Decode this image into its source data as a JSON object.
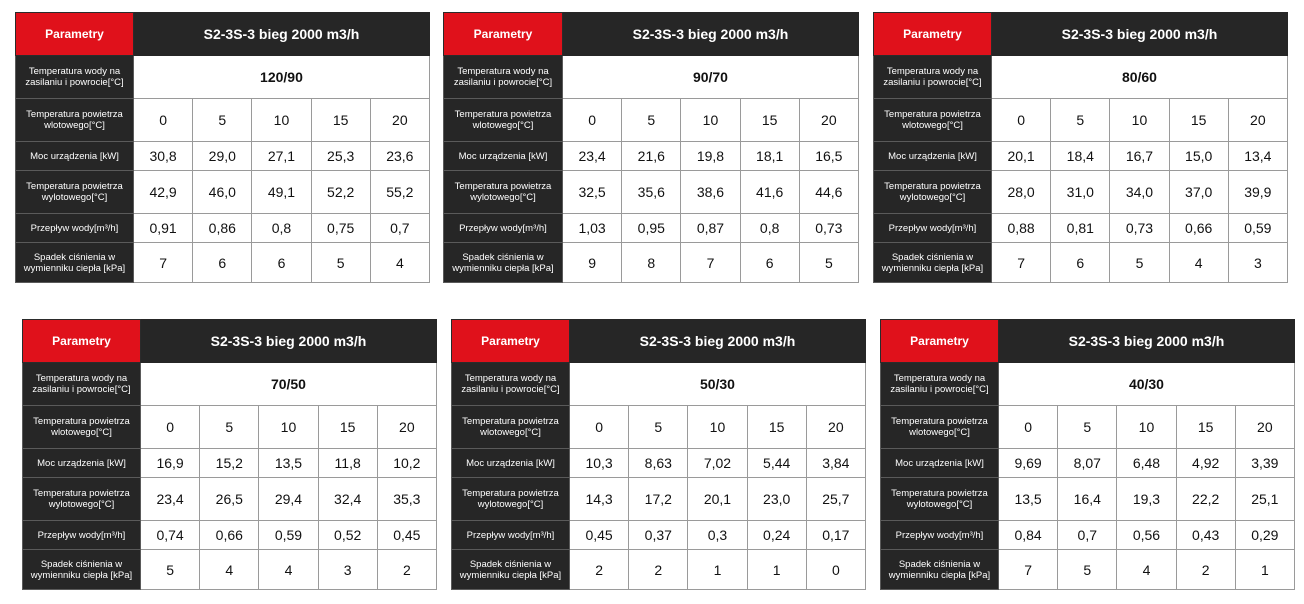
{
  "labels": {
    "parametry": "Parametry",
    "temp_wody": [
      "Temperatura wody na",
      "zasilaniu i powrocie[°C]"
    ],
    "temp_wlot": [
      "Temperatura powietrza",
      "wlotowego[°C]"
    ],
    "moc": "Moc urządzenia [kW]",
    "temp_wylot": [
      "Temperatura powietrza",
      "wylotowego[°C]"
    ],
    "przeplyw": "Przepływ wody[m³/h]",
    "spadek": [
      "Spadek ciśnienia w",
      "wymienniku ciepła [kPa]"
    ]
  },
  "tables": [
    {
      "title": "S2-3S-3 bieg 2000 m3/h",
      "water_temp": "120/90",
      "inlet": [
        "0",
        "5",
        "10",
        "15",
        "20"
      ],
      "power": [
        "30,8",
        "29,0",
        "27,1",
        "25,3",
        "23,6"
      ],
      "outlet": [
        "42,9",
        "46,0",
        "49,1",
        "52,2",
        "55,2"
      ],
      "flow": [
        "0,91",
        "0,86",
        "0,8",
        "0,75",
        "0,7"
      ],
      "pressure": [
        "7",
        "6",
        "6",
        "5",
        "4"
      ]
    },
    {
      "title": "S2-3S-3 bieg 2000 m3/h",
      "water_temp": "90/70",
      "inlet": [
        "0",
        "5",
        "10",
        "15",
        "20"
      ],
      "power": [
        "23,4",
        "21,6",
        "19,8",
        "18,1",
        "16,5"
      ],
      "outlet": [
        "32,5",
        "35,6",
        "38,6",
        "41,6",
        "44,6"
      ],
      "flow": [
        "1,03",
        "0,95",
        "0,87",
        "0,8",
        "0,73"
      ],
      "pressure": [
        "9",
        "8",
        "7",
        "6",
        "5"
      ]
    },
    {
      "title": "S2-3S-3 bieg 2000 m3/h",
      "water_temp": "80/60",
      "inlet": [
        "0",
        "5",
        "10",
        "15",
        "20"
      ],
      "power": [
        "20,1",
        "18,4",
        "16,7",
        "15,0",
        "13,4"
      ],
      "outlet": [
        "28,0",
        "31,0",
        "34,0",
        "37,0",
        "39,9"
      ],
      "flow": [
        "0,88",
        "0,81",
        "0,73",
        "0,66",
        "0,59"
      ],
      "pressure": [
        "7",
        "6",
        "5",
        "4",
        "3"
      ]
    },
    {
      "title": "S2-3S-3 bieg 2000 m3/h",
      "water_temp": "70/50",
      "inlet": [
        "0",
        "5",
        "10",
        "15",
        "20"
      ],
      "power": [
        "16,9",
        "15,2",
        "13,5",
        "11,8",
        "10,2"
      ],
      "outlet": [
        "23,4",
        "26,5",
        "29,4",
        "32,4",
        "35,3"
      ],
      "flow": [
        "0,74",
        "0,66",
        "0,59",
        "0,52",
        "0,45"
      ],
      "pressure": [
        "5",
        "4",
        "4",
        "3",
        "2"
      ]
    },
    {
      "title": "S2-3S-3 bieg 2000 m3/h",
      "water_temp": "50/30",
      "inlet": [
        "0",
        "5",
        "10",
        "15",
        "20"
      ],
      "power": [
        "10,3",
        "8,63",
        "7,02",
        "5,44",
        "3,84"
      ],
      "outlet": [
        "14,3",
        "17,2",
        "20,1",
        "23,0",
        "25,7"
      ],
      "flow": [
        "0,45",
        "0,37",
        "0,3",
        "0,24",
        "0,17"
      ],
      "pressure": [
        "2",
        "2",
        "1",
        "1",
        "0"
      ]
    },
    {
      "title": "S2-3S-3 bieg 2000 m3/h",
      "water_temp": "40/30",
      "inlet": [
        "0",
        "5",
        "10",
        "15",
        "20"
      ],
      "power": [
        "9,69",
        "8,07",
        "6,48",
        "4,92",
        "3,39"
      ],
      "outlet": [
        "13,5",
        "16,4",
        "19,3",
        "22,2",
        "25,1"
      ],
      "flow": [
        "0,84",
        "0,7",
        "0,56",
        "0,43",
        "0,29"
      ],
      "pressure": [
        "7",
        "5",
        "4",
        "2",
        "1"
      ]
    }
  ]
}
